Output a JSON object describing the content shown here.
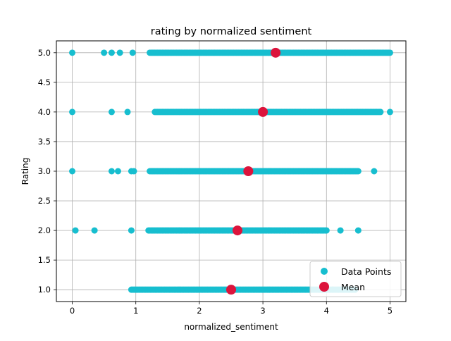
{
  "chart_data": {
    "type": "scatter",
    "title": "rating by normalized sentiment",
    "xlabel": "normalized_sentiment",
    "ylabel": "Rating",
    "xlim": [
      -0.25,
      5.25
    ],
    "ylim": [
      0.8,
      5.2
    ],
    "xticks": [
      0,
      1,
      2,
      3,
      4,
      5
    ],
    "xtick_labels": [
      "0",
      "1",
      "2",
      "3",
      "4",
      "5"
    ],
    "yticks": [
      1.0,
      1.5,
      2.0,
      2.5,
      3.0,
      3.5,
      4.0,
      4.5,
      5.0
    ],
    "ytick_labels": [
      "1.0",
      "1.5",
      "2.0",
      "2.5",
      "3.0",
      "3.5",
      "4.0",
      "4.5",
      "5.0"
    ],
    "grid": true,
    "legend_position": "bottom-right",
    "series": [
      {
        "name": "Data Points",
        "color": "#17becf",
        "marker": "circle",
        "rows": [
          {
            "rating": 5.0,
            "isolated": [
              0.0,
              0.5,
              0.62,
              0.75,
              0.95
            ],
            "dense_range": [
              1.22,
              5.0
            ]
          },
          {
            "rating": 4.0,
            "isolated": [
              0.0,
              0.62,
              0.87
            ],
            "dense_range": [
              1.3,
              4.85
            ],
            "extra": [
              5.0
            ]
          },
          {
            "rating": 3.0,
            "isolated": [
              0.0,
              0.62,
              0.72,
              0.93,
              0.97
            ],
            "dense_range": [
              1.22,
              4.5
            ],
            "extra": [
              4.75
            ]
          },
          {
            "rating": 2.0,
            "isolated": [
              0.05,
              0.35,
              0.93
            ],
            "dense_range": [
              1.2,
              4.0
            ],
            "extra": [
              4.22,
              4.5
            ]
          },
          {
            "rating": 1.0,
            "isolated": [],
            "dense_range": [
              0.93,
              4.45
            ],
            "extra": [
              4.1
            ]
          }
        ]
      },
      {
        "name": "Mean",
        "color": "#dc143c",
        "marker": "circle",
        "points": [
          {
            "x": 3.2,
            "y": 5.0
          },
          {
            "x": 3.0,
            "y": 4.0
          },
          {
            "x": 2.77,
            "y": 3.0
          },
          {
            "x": 2.6,
            "y": 2.0
          },
          {
            "x": 2.5,
            "y": 1.0
          }
        ]
      }
    ]
  }
}
